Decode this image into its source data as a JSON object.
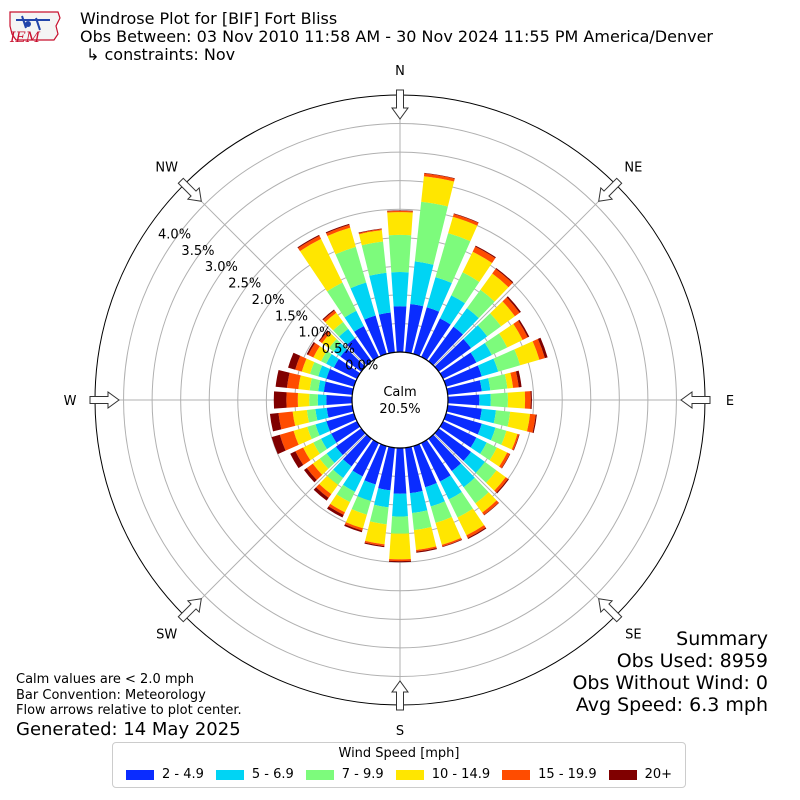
{
  "header": {
    "title": "Windrose Plot for [BIF] Fort Bliss",
    "subtitle": "Obs Between: 03 Nov 2010 11:58 AM - 30 Nov 2024 11:55 PM America/Denver",
    "constraints": "↳ constraints: Nov",
    "logo_text": "IEM"
  },
  "summary": {
    "heading": "Summary",
    "obs_used": "Obs Used: 8959",
    "obs_without_wind": "Obs Without Wind: 0",
    "avg_speed": "Avg Speed: 6.3 mph"
  },
  "notes": {
    "calm_note": "Calm values are < 2.0 mph",
    "bar_convention": "Bar Convention: Meteorology",
    "flow_arrows": "Flow arrows relative to plot center.",
    "generated": "Generated: 14 May 2025"
  },
  "chart_data": {
    "type": "windrose",
    "calm_label": "Calm",
    "calm_value": "20.5%",
    "rlim": [
      0,
      4.5
    ],
    "radial_ticks": [
      "0.0%",
      "0.5%",
      "1.0%",
      "1.5%",
      "2.0%",
      "2.5%",
      "3.0%",
      "3.5%",
      "4.0%"
    ],
    "radial_tick_values": [
      0,
      0.5,
      1.0,
      1.5,
      2.0,
      2.5,
      3.0,
      3.5,
      4.0
    ],
    "compass_labels": [
      "N",
      "NE",
      "E",
      "SE",
      "S",
      "SW",
      "W",
      "NW"
    ],
    "direction_sectors": 36,
    "directions_deg": [
      0,
      10,
      20,
      30,
      40,
      50,
      60,
      70,
      80,
      90,
      100,
      110,
      120,
      130,
      140,
      150,
      160,
      170,
      180,
      190,
      200,
      210,
      220,
      230,
      240,
      250,
      260,
      270,
      280,
      290,
      300,
      310,
      320,
      330,
      340,
      350
    ],
    "legend_title": "Wind Speed [mph]",
    "speed_bins": [
      "2 - 4.9",
      "5 - 6.9",
      "7 - 9.9",
      "10 - 14.9",
      "15 - 19.9",
      "20+"
    ],
    "colors": [
      "#0a2cff",
      "#00d4f4",
      "#7dfb7c",
      "#ffe600",
      "#ff4c00",
      "#800000"
    ],
    "cumulative_percent_by_direction": [
      [
        0.8,
        1.4,
        2.05,
        2.45,
        2.47,
        2.48
      ],
      [
        0.85,
        1.6,
        2.65,
        3.1,
        3.15,
        3.16
      ],
      [
        0.85,
        1.4,
        2.2,
        2.5,
        2.55,
        2.56
      ],
      [
        0.75,
        1.2,
        1.65,
        2.05,
        2.15,
        2.17
      ],
      [
        0.75,
        1.15,
        1.55,
        1.9,
        2.0,
        2.02
      ],
      [
        0.7,
        1.05,
        1.35,
        1.65,
        1.75,
        1.78
      ],
      [
        0.65,
        0.95,
        1.25,
        1.55,
        1.65,
        1.68
      ],
      [
        0.65,
        0.95,
        1.35,
        1.7,
        1.8,
        1.85
      ],
      [
        0.6,
        0.75,
        1.05,
        1.15,
        1.25,
        1.3
      ],
      [
        0.55,
        0.75,
        1.05,
        1.35,
        1.45,
        1.47
      ],
      [
        0.6,
        0.85,
        1.1,
        1.45,
        1.55,
        1.57
      ],
      [
        0.65,
        0.9,
        1.1,
        1.3,
        1.33,
        1.34
      ],
      [
        0.65,
        0.85,
        1.05,
        1.25,
        1.3,
        1.31
      ],
      [
        0.7,
        1.0,
        1.25,
        1.45,
        1.5,
        1.52
      ],
      [
        0.7,
        1.05,
        1.4,
        1.6,
        1.65,
        1.66
      ],
      [
        0.75,
        1.1,
        1.45,
        1.8,
        1.85,
        1.87
      ],
      [
        0.75,
        1.1,
        1.4,
        1.8,
        1.83,
        1.84
      ],
      [
        0.8,
        1.15,
        1.45,
        1.8,
        1.83,
        1.85
      ],
      [
        0.8,
        1.2,
        1.5,
        1.95,
        1.98,
        2.0
      ],
      [
        0.75,
        1.05,
        1.35,
        1.7,
        1.73,
        1.75
      ],
      [
        0.7,
        1.0,
        1.25,
        1.5,
        1.54,
        1.57
      ],
      [
        0.65,
        0.95,
        1.15,
        1.35,
        1.4,
        1.45
      ],
      [
        0.6,
        0.85,
        1.0,
        1.2,
        1.28,
        1.34
      ],
      [
        0.55,
        0.75,
        0.9,
        1.05,
        1.18,
        1.24
      ],
      [
        0.5,
        0.7,
        0.85,
        1.05,
        1.2,
        1.3
      ],
      [
        0.5,
        0.7,
        0.85,
        1.1,
        1.35,
        1.5
      ],
      [
        0.45,
        0.65,
        0.8,
        1.05,
        1.3,
        1.45
      ],
      [
        0.45,
        0.6,
        0.75,
        0.95,
        1.15,
        1.37
      ],
      [
        0.5,
        0.6,
        0.75,
        0.95,
        1.15,
        1.35
      ],
      [
        0.5,
        0.65,
        0.8,
        0.95,
        1.07,
        1.2
      ],
      [
        0.45,
        0.6,
        0.7,
        0.85,
        0.95,
        0.98
      ],
      [
        0.45,
        0.6,
        0.7,
        0.85,
        0.9,
        0.92
      ],
      [
        0.5,
        0.7,
        0.85,
        1.05,
        1.1,
        1.12
      ],
      [
        0.6,
        0.9,
        1.45,
        2.3,
        2.36,
        2.38
      ],
      [
        0.7,
        1.3,
        1.95,
        2.3,
        2.35,
        2.37
      ],
      [
        0.7,
        1.4,
        1.95,
        2.15,
        2.17,
        2.18
      ]
    ]
  }
}
